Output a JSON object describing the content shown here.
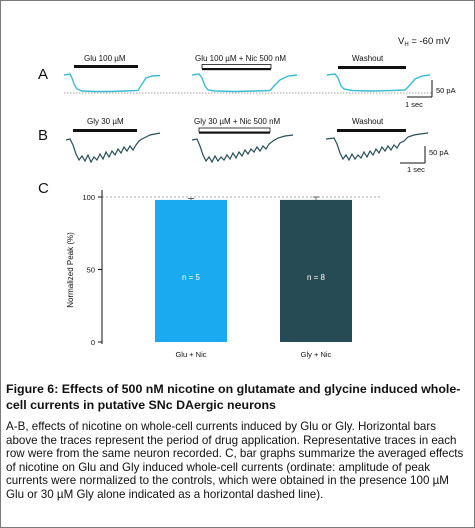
{
  "figure": {
    "vh_prefix": "V",
    "vh_subscript": "H",
    "vh_value": " = -60 mV",
    "panel_a": {
      "label": "A",
      "drug_labels": [
        "Glu 100 µM",
        "Glu 100 µM + Nic 500 nM",
        "Washout"
      ],
      "scale_current": "50 pA",
      "scale_time": "1 sec",
      "trace_color": "#3bbcd0"
    },
    "panel_b": {
      "label": "B",
      "drug_labels": [
        "Gly 30 µM",
        "Gly 30 µM + Nic 500 nM",
        "Washout"
      ],
      "scale_current": "50 pA",
      "scale_time": "1 sec",
      "trace_color": "#274f55"
    },
    "panel_c": {
      "label": "C",
      "bar_labels": [
        "n = 5",
        "n = 8"
      ]
    }
  },
  "chart_data": {
    "type": "bar",
    "categories": [
      "Glu + Nic",
      "Gly + Nic"
    ],
    "values": [
      98,
      98
    ],
    "errors": [
      1,
      2
    ],
    "ylabel": "Normalized Peak (%)",
    "ylim": [
      0,
      100
    ],
    "yticks": [
      0,
      50,
      100
    ],
    "control_reference": 100,
    "bar_colors": [
      "#1aaaef",
      "#274b55"
    ]
  },
  "caption": {
    "title": "Figure 6: Effects of 500 nM nicotine on glutamate and glycine induced whole-cell currents in putative SNc DAergic neurons",
    "body": "A-B, effects of nicotine on whole-cell currents induced by Glu or Gly. Horizontal bars above the traces represent the period of drug application. Representative traces in each row were from the same neuron recorded. C, bar graphs summarize the averaged effects of nicotine on Glu and Gly induced whole-cell currents (ordinate: amplitude of peak currents were normalized to the controls, which were obtained in the presence 100 µM Glu or 30 µM Gly alone indicated as a horizontal dashed line)."
  }
}
